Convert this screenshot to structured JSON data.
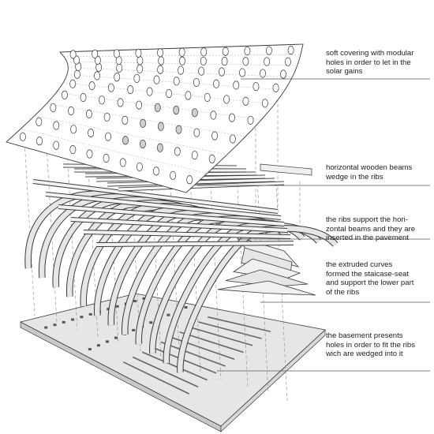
{
  "diagram": {
    "colors": {
      "line": "#3a3a3a",
      "fill": "#e6e6e6",
      "fill_dark": "#c9c9c9",
      "leader": "#555555",
      "background": "#ffffff"
    },
    "annotations": [
      {
        "id": "soft-covering",
        "lines": [
          "soft covering with modular",
          "holes in order to let in the",
          "solar gains"
        ]
      },
      {
        "id": "horizontal-beams",
        "lines": [
          "horizontal wooden beams",
          "wedge in the ribs"
        ]
      },
      {
        "id": "ribs",
        "lines": [
          "the ribs support the hori-",
          "zontal beams and they are",
          "inserted in the pavement"
        ]
      },
      {
        "id": "extruded-curves",
        "lines": [
          "the extruded curves",
          "formed the staicase-seat",
          "and support the lower part",
          "of the ribs"
        ]
      },
      {
        "id": "basement",
        "lines": [
          "the basement presents",
          "holes in order to fit the ribs",
          "wich are wedged into it"
        ]
      }
    ]
  }
}
